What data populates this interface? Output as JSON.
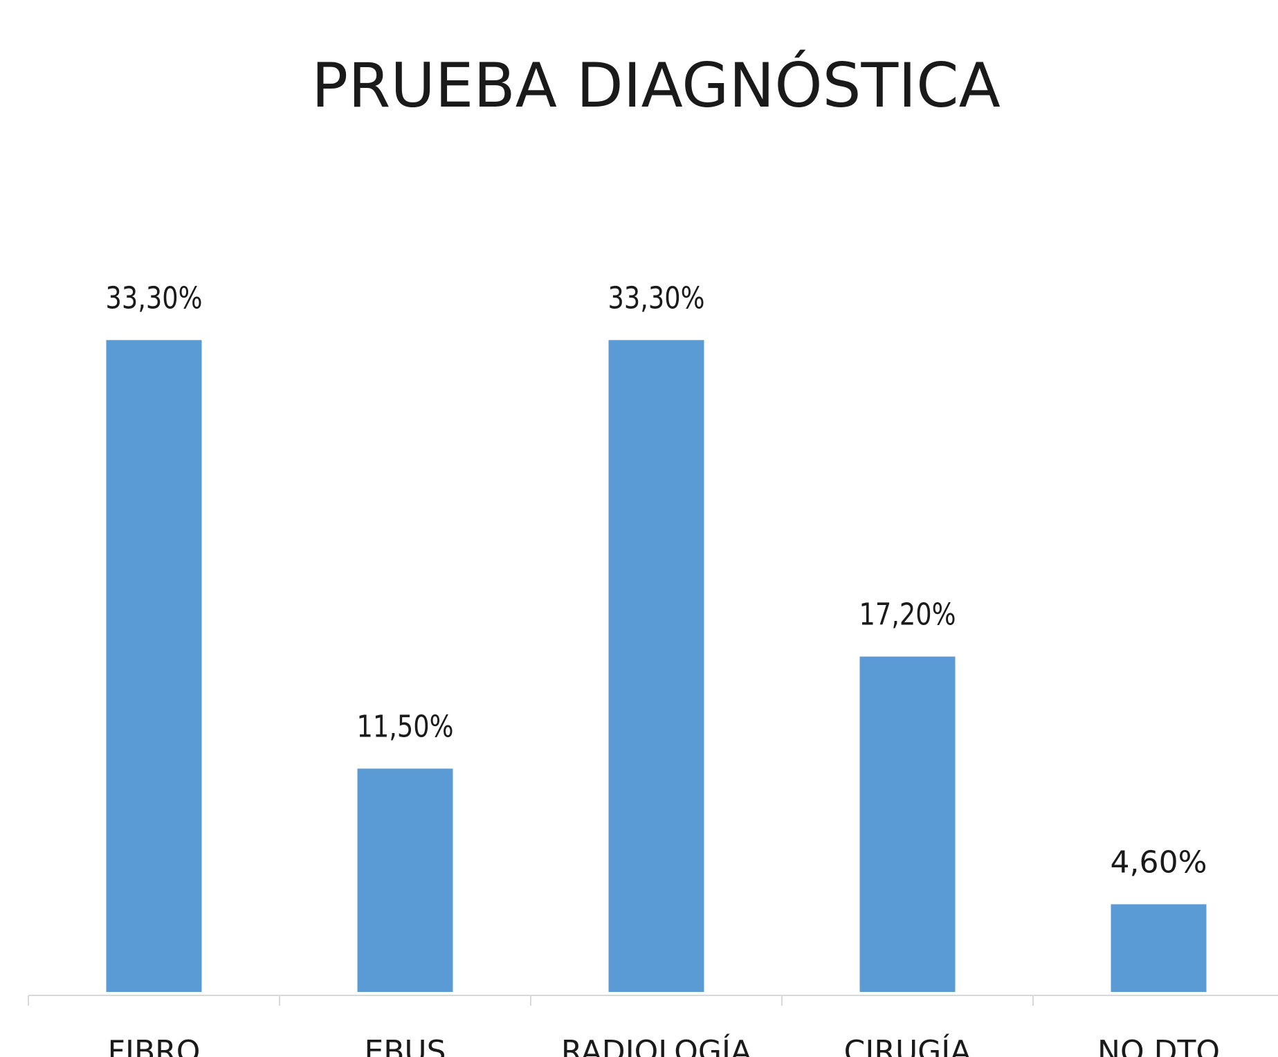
{
  "chart_data": {
    "type": "bar",
    "title": "PRUEBA DIAGNÓSTICA",
    "categories": [
      "FIBRO",
      "EBUS",
      "RADIOLOGÍA",
      "CIRUGÍA",
      "NO DTO"
    ],
    "values": [
      33.3,
      11.5,
      33.3,
      17.2,
      4.6
    ],
    "value_labels": [
      "33,30%",
      "11,50%",
      "33,30%",
      "17,20%",
      "4,60%"
    ],
    "color": "#5b9bd5"
  }
}
